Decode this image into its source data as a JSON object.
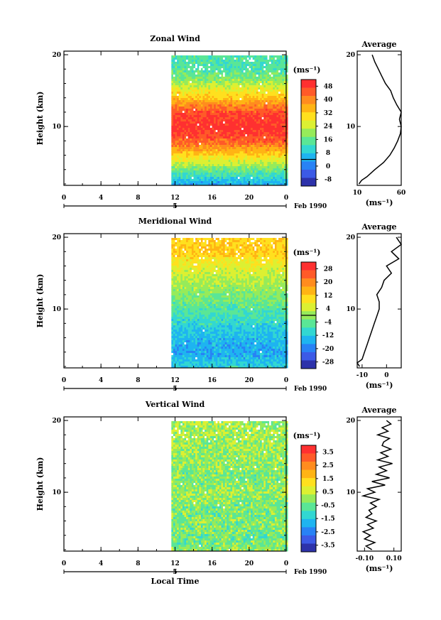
{
  "chart_data": [
    {
      "type": "heatmap",
      "title": "Zonal Wind",
      "ylabel": "Height (km)",
      "unit": "(ms⁻¹)",
      "x_ticks": [
        "0",
        "4",
        "8",
        "12",
        "16",
        "20",
        "0"
      ],
      "y_ticks": [
        "20",
        "10"
      ],
      "date_tick": "5",
      "date_label": "Feb 1990",
      "xlim": [
        0,
        24
      ],
      "ylim": [
        1.8,
        20.5
      ],
      "data_start_hour": 11.6,
      "colorbar_labels": [
        "48",
        "40",
        "32",
        "24",
        "16",
        "8",
        "0",
        "-8"
      ],
      "colorbar_colors": [
        "#ff3030",
        "#ff5a28",
        "#ff8c1e",
        "#ffb414",
        "#ffe01e",
        "#dcf032",
        "#96eb5a",
        "#5ae696",
        "#32d7d2",
        "#1eb4f0",
        "#2882f5",
        "#3c5ae6",
        "#2d32aa"
      ],
      "colorbar_range": [
        -12,
        52
      ],
      "profile_heights_km": [
        18,
        16,
        14,
        12,
        10,
        8,
        6,
        4,
        2
      ],
      "height_range_km": [
        2,
        20
      ],
      "series": [
        {
          "name": "Zonal Wind (ms⁻¹) by height",
          "values": [
            14,
            22,
            34,
            47,
            50,
            44,
            30,
            16,
            4
          ]
        }
      ],
      "average_profile": {
        "title": "Average",
        "xlim": [
          10,
          60
        ],
        "x_ticks": [
          "10",
          "60"
        ],
        "y_ticks": [
          "20",
          "10"
        ],
        "unit": "(ms⁻¹)",
        "height_km": [
          2,
          2.5,
          3,
          4,
          5,
          6,
          7,
          8,
          9,
          10,
          11,
          12,
          13,
          14,
          15,
          16,
          17,
          18,
          19,
          20
        ],
        "values": [
          12,
          15,
          21,
          30,
          40,
          47,
          52,
          56,
          59,
          60,
          58,
          60,
          55,
          51,
          48,
          42,
          38,
          34,
          30,
          27
        ]
      }
    },
    {
      "type": "heatmap",
      "title": "Meridional Wind",
      "ylabel": "Height (km)",
      "unit": "(ms⁻¹)",
      "x_ticks": [
        "0",
        "4",
        "8",
        "12",
        "16",
        "20",
        "0"
      ],
      "y_ticks": [
        "20",
        "10"
      ],
      "date_tick": "5",
      "date_label": "Feb 1990",
      "xlim": [
        0,
        24
      ],
      "ylim": [
        1.8,
        20.5
      ],
      "data_start_hour": 11.6,
      "colorbar_labels": [
        "28",
        "20",
        "12",
        "4",
        "-4",
        "-12",
        "-20",
        "-28"
      ],
      "colorbar_colors": [
        "#ff3030",
        "#ff5a28",
        "#ff8c1e",
        "#ffb414",
        "#ffe01e",
        "#dcf032",
        "#96eb5a",
        "#5ae696",
        "#32d7d2",
        "#1eb4f0",
        "#2882f5",
        "#3c5ae6",
        "#2d32aa"
      ],
      "colorbar_range": [
        -32,
        32
      ],
      "profile_heights_km": [
        18,
        16,
        14,
        12,
        10,
        8,
        6,
        4,
        2
      ],
      "height_range_km": [
        2,
        20
      ],
      "series": [
        {
          "name": "Meridional Wind (ms⁻¹) by height",
          "values": [
            12,
            6,
            2,
            -2,
            -6,
            -10,
            -14,
            -16,
            -10
          ]
        }
      ],
      "average_profile": {
        "title": "Average",
        "xlim": [
          -12,
          6
        ],
        "x_ticks": [
          "-10",
          "0"
        ],
        "y_ticks": [
          "20",
          "10"
        ],
        "unit": "(ms⁻¹)",
        "height_km": [
          2,
          2.5,
          3,
          4,
          5,
          6,
          7,
          8,
          9,
          10,
          11,
          12,
          13,
          14,
          15,
          16,
          17,
          18,
          19,
          20
        ],
        "values": [
          -11,
          -12,
          -10,
          -9,
          -8,
          -7,
          -6,
          -5,
          -4,
          -3,
          -3,
          -4,
          -2,
          -1,
          2,
          0,
          5,
          2,
          6,
          4
        ]
      }
    },
    {
      "type": "heatmap",
      "title": "Vertical Wind",
      "ylabel": "Height (km)",
      "unit": "(ms⁻¹)",
      "x_ticks": [
        "0",
        "4",
        "8",
        "12",
        "16",
        "20",
        "0"
      ],
      "y_ticks": [
        "20",
        "10"
      ],
      "date_tick": "5",
      "date_label": "Feb 1990",
      "xlabel": "Local Time",
      "xlim": [
        0,
        24
      ],
      "ylim": [
        1.8,
        20.5
      ],
      "data_start_hour": 11.6,
      "colorbar_labels": [
        "3.5",
        "2.5",
        "1.5",
        "0.5",
        "-0.5",
        "-1.5",
        "-2.5",
        "-3.5"
      ],
      "colorbar_colors": [
        "#ff3030",
        "#ff5a28",
        "#ff8c1e",
        "#ffb414",
        "#ffe01e",
        "#dcf032",
        "#96eb5a",
        "#5ae696",
        "#32d7d2",
        "#1eb4f0",
        "#2882f5",
        "#3c5ae6",
        "#2d32aa"
      ],
      "colorbar_range": [
        -4,
        4
      ],
      "profile_heights_km": [
        18,
        16,
        14,
        12,
        10,
        8,
        6,
        4,
        2
      ],
      "height_range_km": [
        2,
        20
      ],
      "series": [
        {
          "name": "Vertical Wind (ms⁻¹) by height",
          "values": [
            0.1,
            0.0,
            -0.1,
            -0.2,
            0.0,
            -0.3,
            -0.2,
            -0.4,
            -0.1
          ]
        }
      ],
      "average_profile": {
        "title": "Average",
        "xlim": [
          -0.15,
          0.15
        ],
        "x_ticks": [
          "-0.10",
          "0.10"
        ],
        "y_ticks": [
          "20",
          "10"
        ],
        "unit": "(ms⁻¹)",
        "height_km": [
          2,
          2.5,
          3,
          3.5,
          4,
          4.5,
          5,
          5.5,
          6,
          6.5,
          7,
          7.5,
          8,
          8.5,
          9,
          9.5,
          10,
          10.5,
          11,
          11.5,
          12,
          12.5,
          13,
          13.5,
          14,
          14.5,
          15,
          15.5,
          16,
          16.5,
          17,
          17.5,
          18,
          18.5,
          19,
          19.5,
          20
        ],
        "values": [
          -0.05,
          -0.09,
          -0.03,
          -0.1,
          -0.06,
          -0.11,
          -0.04,
          -0.08,
          -0.02,
          -0.09,
          -0.05,
          -0.07,
          -0.02,
          -0.06,
          0.0,
          -0.11,
          -0.03,
          -0.08,
          0.04,
          -0.05,
          0.07,
          -0.02,
          0.05,
          0.0,
          0.09,
          -0.01,
          0.06,
          0.01,
          0.08,
          0.02,
          0.03,
          0.07,
          -0.01,
          0.06,
          0.02,
          0.08,
          0.05
        ]
      }
    }
  ]
}
